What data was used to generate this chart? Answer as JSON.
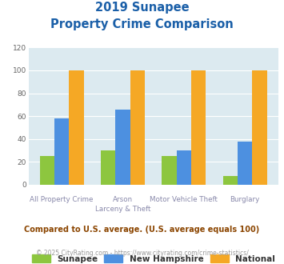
{
  "title_line1": "2019 Sunapee",
  "title_line2": "Property Crime Comparison",
  "cat_labels_top": [
    "All Property Crime",
    "Arson",
    "Motor Vehicle Theft",
    "Burglary"
  ],
  "cat_labels_bot": [
    "",
    "Larceny & Theft",
    "",
    ""
  ],
  "sunapee": [
    25,
    30,
    25,
    8
  ],
  "new_hampshire": [
    58,
    66,
    30,
    38
  ],
  "national": [
    100,
    100,
    100,
    100
  ],
  "sunapee_color": "#8dc63f",
  "nh_color": "#4d90e0",
  "national_color": "#f5a825",
  "bg_color": "#dceaf0",
  "title_color": "#1a5fa8",
  "ylim": [
    0,
    120
  ],
  "yticks": [
    0,
    20,
    40,
    60,
    80,
    100,
    120
  ],
  "footnote": "Compared to U.S. average. (U.S. average equals 100)",
  "copyright": "© 2025 CityRating.com - https://www.cityrating.com/crime-statistics/",
  "footnote_color": "#8b4500",
  "copyright_color": "#999999",
  "legend_labels": [
    "Sunapee",
    "New Hampshire",
    "National"
  ],
  "xlabel_color": "#8888aa"
}
